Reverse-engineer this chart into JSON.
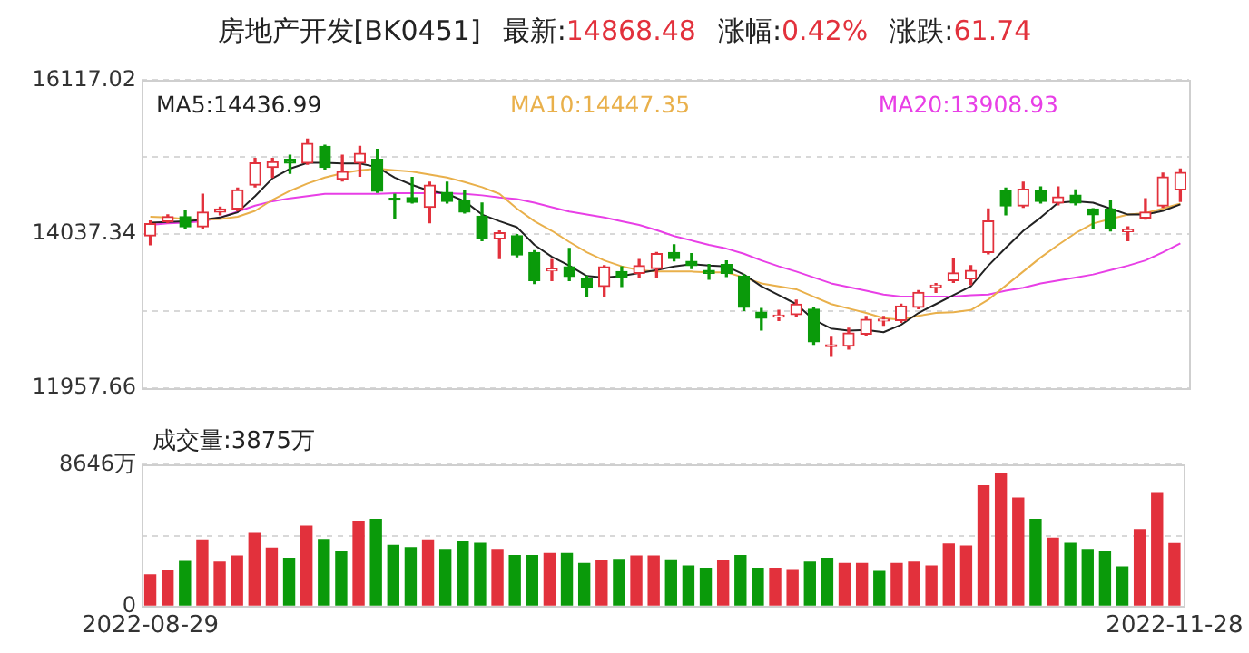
{
  "chart_data": [
    {
      "type": "candlestick",
      "title": "房地产开发[BK0451]",
      "annotations": [
        "最新:14868.48",
        "涨幅:0.42%",
        "涨跌:61.74"
      ],
      "categories": [
        "2022-08-29",
        null,
        null,
        null,
        null,
        null,
        null,
        null,
        null,
        null,
        null,
        null,
        null,
        null,
        null,
        null,
        null,
        null,
        null,
        null,
        null,
        null,
        null,
        null,
        null,
        null,
        null,
        null,
        null,
        null,
        null,
        null,
        null,
        null,
        null,
        null,
        null,
        null,
        null,
        null,
        null,
        null,
        null,
        null,
        null,
        null,
        null,
        null,
        null,
        null,
        null,
        null,
        null,
        null,
        null,
        null,
        null,
        null,
        null,
        "2022-11-28"
      ],
      "ohlc": [
        [
          14013,
          14213,
          13892,
          14175
        ],
        [
          14206,
          14296,
          14189,
          14271
        ],
        [
          14271,
          14351,
          14109,
          14133
        ],
        [
          14133,
          14576,
          14109,
          14334
        ],
        [
          14334,
          14399,
          14296,
          14375
        ],
        [
          14375,
          14658,
          14351,
          14634
        ],
        [
          14697,
          15060,
          14673,
          14997
        ],
        [
          14939,
          15060,
          14803,
          15012
        ],
        [
          15046,
          15101,
          14859,
          14997
        ],
        [
          14997,
          15319,
          14980,
          15263
        ],
        [
          15222,
          15238,
          14915,
          14939
        ],
        [
          14779,
          15101,
          14755,
          14883
        ],
        [
          14997,
          15222,
          14818,
          15126
        ],
        [
          15046,
          15181,
          14600,
          14617
        ],
        [
          14510,
          14576,
          14254,
          14496
        ],
        [
          14528,
          14803,
          14455,
          14465
        ],
        [
          14399,
          14738,
          14189,
          14697
        ],
        [
          14600,
          14738,
          14455,
          14479
        ],
        [
          14496,
          14617,
          14320,
          14334
        ],
        [
          14279,
          14455,
          13947,
          13971
        ],
        [
          13971,
          14078,
          13706,
          14054
        ],
        [
          14013,
          14030,
          13730,
          13754
        ],
        [
          13788,
          13812,
          13367,
          13408
        ],
        [
          13540,
          13691,
          13408,
          13546
        ],
        [
          13594,
          13843,
          13408,
          13464
        ],
        [
          13432,
          13464,
          13190,
          13311
        ],
        [
          13328,
          13609,
          13190,
          13594
        ],
        [
          13529,
          13594,
          13328,
          13449
        ],
        [
          13505,
          13691,
          13449,
          13609
        ],
        [
          13570,
          13788,
          13449,
          13771
        ],
        [
          13788,
          13892,
          13674,
          13706
        ],
        [
          13667,
          13771,
          13570,
          13609
        ],
        [
          13546,
          13626,
          13425,
          13505
        ],
        [
          13626,
          13674,
          13464,
          13505
        ],
        [
          13464,
          13488,
          13004,
          13045
        ],
        [
          12980,
          13029,
          12738,
          12900
        ],
        [
          12915,
          13004,
          12869,
          12924
        ],
        [
          12949,
          13142,
          12924,
          13087
        ],
        [
          13021,
          13045,
          12545,
          12579
        ],
        [
          12515,
          12642,
          12385,
          12521
        ],
        [
          12521,
          12763,
          12482,
          12700
        ],
        [
          12683,
          12924,
          12659,
          12883
        ],
        [
          12862,
          12924,
          12804,
          12869
        ],
        [
          12869,
          13087,
          12845,
          13063
        ],
        [
          13045,
          13271,
          13029,
          13247
        ],
        [
          13320,
          13368,
          13247,
          13328
        ],
        [
          13408,
          13706,
          13384,
          13512
        ],
        [
          13432,
          13609,
          13353,
          13546
        ],
        [
          13788,
          14375,
          13771,
          14213
        ],
        [
          14617,
          14658,
          14296,
          14416
        ],
        [
          14416,
          14738,
          14399,
          14641
        ],
        [
          14617,
          14673,
          14455,
          14479
        ],
        [
          14455,
          14673,
          14431,
          14537
        ],
        [
          14562,
          14634,
          14431,
          14455
        ],
        [
          14375,
          14380,
          14109,
          14296
        ],
        [
          14375,
          14496,
          14078,
          14109
        ],
        [
          14070,
          14133,
          13947,
          14078
        ],
        [
          14254,
          14513,
          14238,
          14334
        ],
        [
          14416,
          14859,
          14399,
          14807
        ],
        [
          14634,
          14915,
          14479,
          14868.48
        ]
      ],
      "colors": [
        "#e2313c",
        "#e2313c",
        "#0a9a0a",
        "#e2313c",
        "#e2313c",
        "#e2313c",
        "#e2313c",
        "#e2313c",
        "#0a9a0a",
        "#e2313c",
        "#0a9a0a",
        "#e2313c",
        "#e2313c",
        "#0a9a0a",
        "#0a9a0a",
        "#0a9a0a",
        "#e2313c",
        "#0a9a0a",
        "#0a9a0a",
        "#0a9a0a",
        "#e2313c",
        "#0a9a0a",
        "#0a9a0a",
        "#e2313c",
        "#0a9a0a",
        "#0a9a0a",
        "#e2313c",
        "#0a9a0a",
        "#e2313c",
        "#e2313c",
        "#0a9a0a",
        "#0a9a0a",
        "#0a9a0a",
        "#0a9a0a",
        "#0a9a0a",
        "#0a9a0a",
        "#e2313c",
        "#e2313c",
        "#0a9a0a",
        "#e2313c",
        "#e2313c",
        "#e2313c",
        "#e2313c",
        "#e2313c",
        "#e2313c",
        "#e2313c",
        "#e2313c",
        "#e2313c",
        "#e2313c",
        "#0a9a0a",
        "#e2313c",
        "#0a9a0a",
        "#e2313c",
        "#0a9a0a",
        "#0a9a0a",
        "#0a9a0a",
        "#e2313c",
        "#e2313c",
        "#e2313c",
        "#e2313c"
      ],
      "series": [
        {
          "name": "MA5:14436.99",
          "type": "line",
          "color": "#222222",
          "values": [
            14190,
            14200,
            14210,
            14230,
            14260,
            14330,
            14550,
            14790,
            14920,
            15000,
            15000,
            14990,
            14990,
            14940,
            14800,
            14700,
            14620,
            14580,
            14480,
            14300,
            14210,
            14130,
            13890,
            13730,
            13610,
            13470,
            13450,
            13470,
            13510,
            13550,
            13600,
            13630,
            13610,
            13600,
            13490,
            13330,
            13210,
            13090,
            12880,
            12760,
            12730,
            12740,
            12710,
            12810,
            12970,
            13090,
            13210,
            13330,
            13610,
            13850,
            14080,
            14260,
            14460,
            14480,
            14460,
            14380,
            14300,
            14300,
            14350,
            14436.99
          ]
        },
        {
          "name": "MA10:14447.35",
          "type": "line",
          "color": "#e9b04b",
          "values": [
            14270,
            14260,
            14240,
            14230,
            14240,
            14270,
            14350,
            14500,
            14620,
            14720,
            14800,
            14860,
            14900,
            14920,
            14900,
            14880,
            14840,
            14800,
            14740,
            14670,
            14580,
            14380,
            14210,
            14080,
            13930,
            13790,
            13680,
            13600,
            13550,
            13530,
            13530,
            13530,
            13520,
            13520,
            13450,
            13370,
            13330,
            13290,
            13190,
            13090,
            13030,
            12970,
            12900,
            12880,
            12930,
            12970,
            12980,
            13010,
            13150,
            13340,
            13530,
            13720,
            13890,
            14050,
            14180,
            14240,
            14300,
            14320,
            14380,
            14447.35
          ]
        },
        {
          "name": "MA20:13908.93",
          "type": "line",
          "color": "#e83fe6",
          "values": [
            14160,
            14180,
            14190,
            14210,
            14260,
            14340,
            14420,
            14480,
            14520,
            14550,
            14580,
            14580,
            14580,
            14580,
            14590,
            14590,
            14590,
            14590,
            14580,
            14560,
            14530,
            14510,
            14460,
            14400,
            14340,
            14300,
            14260,
            14210,
            14160,
            14090,
            14010,
            13950,
            13890,
            13840,
            13770,
            13680,
            13600,
            13530,
            13450,
            13370,
            13320,
            13270,
            13220,
            13190,
            13190,
            13190,
            13190,
            13210,
            13220,
            13270,
            13310,
            13370,
            13410,
            13450,
            13490,
            13550,
            13610,
            13680,
            13790,
            13908.93
          ]
        }
      ],
      "ylim": [
        11957.66,
        16117.02
      ],
      "yticks": [
        16117.02,
        {
          "value": 15077.18,
          "label": null
        },
        14037.34,
        {
          "value": 12997.5,
          "label": null
        },
        11957.66
      ],
      "grid": "y",
      "legend": "top",
      "marker": "none",
      "tick_labels": "y"
    },
    {
      "type": "bar",
      "title": "成交量:3875万",
      "categories": [
        "2022-08-29",
        null,
        null,
        null,
        null,
        null,
        null,
        null,
        null,
        null,
        null,
        null,
        null,
        null,
        null,
        null,
        null,
        null,
        null,
        null,
        null,
        null,
        null,
        null,
        null,
        null,
        null,
        null,
        null,
        null,
        null,
        null,
        null,
        null,
        null,
        null,
        null,
        null,
        null,
        null,
        null,
        null,
        null,
        null,
        null,
        null,
        null,
        null,
        null,
        null,
        null,
        null,
        null,
        null,
        null,
        null,
        null,
        null,
        null,
        "2022-11-28"
      ],
      "values": [
        1960,
        2250,
        2780,
        4090,
        2740,
        3110,
        4490,
        3600,
        2980,
        4940,
        4120,
        3390,
        5190,
        5350,
        3760,
        3630,
        4090,
        3510,
        4000,
        3880,
        3510,
        3140,
        3140,
        3270,
        3270,
        2650,
        2860,
        2900,
        3110,
        3110,
        2880,
        2500,
        2370,
        2860,
        3140,
        2370,
        2370,
        2290,
        2740,
        2980,
        2650,
        2650,
        2170,
        2650,
        2740,
        2500,
        3840,
        3720,
        7390,
        8160,
        6650,
        5350,
        4210,
        3880,
        3510,
        3390,
        2450,
        4730,
        6930,
        3875
      ],
      "colors": [
        "#e2313c",
        "#e2313c",
        "#0a9a0a",
        "#e2313c",
        "#e2313c",
        "#e2313c",
        "#e2313c",
        "#e2313c",
        "#0a9a0a",
        "#e2313c",
        "#0a9a0a",
        "#0a9a0a",
        "#e2313c",
        "#0a9a0a",
        "#0a9a0a",
        "#0a9a0a",
        "#e2313c",
        "#0a9a0a",
        "#0a9a0a",
        "#0a9a0a",
        "#e2313c",
        "#0a9a0a",
        "#0a9a0a",
        "#e2313c",
        "#0a9a0a",
        "#0a9a0a",
        "#e2313c",
        "#0a9a0a",
        "#e2313c",
        "#e2313c",
        "#0a9a0a",
        "#0a9a0a",
        "#0a9a0a",
        "#e2313c",
        "#0a9a0a",
        "#0a9a0a",
        "#e2313c",
        "#e2313c",
        "#0a9a0a",
        "#0a9a0a",
        "#e2313c",
        "#e2313c",
        "#0a9a0a",
        "#e2313c",
        "#e2313c",
        "#e2313c",
        "#e2313c",
        "#e2313c",
        "#e2313c",
        "#e2313c",
        "#e2313c",
        "#0a9a0a",
        "#e2313c",
        "#0a9a0a",
        "#0a9a0a",
        "#0a9a0a",
        "#0a9a0a",
        "#e2313c",
        "#e2313c",
        "#e2313c"
      ],
      "ylim": [
        0,
        8646
      ],
      "yticks": [
        {
          "value": 8646,
          "label": "8646万"
        },
        {
          "value": 4323,
          "label": null
        },
        0
      ],
      "grid": "y"
    }
  ]
}
